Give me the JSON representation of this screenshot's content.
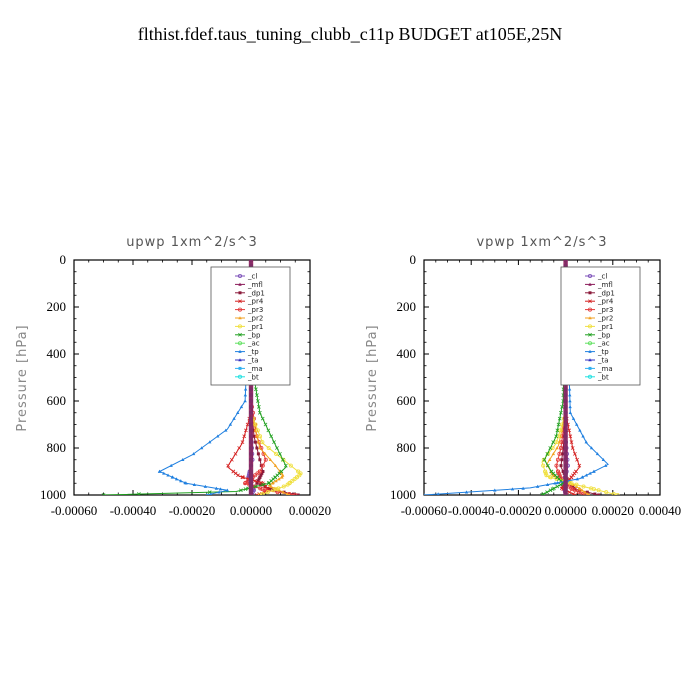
{
  "title": "flthist.fdef.taus_tuning_clubb_c11p  BUDGET at105E,25N",
  "colors": {
    "_cl": "#7b4fb8",
    "_mfl": "#8a1a5a",
    "_dp1": "#8b1a3a",
    "_pr4": "#d42020",
    "_pr3": "#e33a3a",
    "_pr2": "#f2a020",
    "_pr1": "#f0e040",
    "_bp": "#20a020",
    "_ac": "#60e060",
    "_tp": "#2080e0",
    "_ta": "#3030c0",
    "_ma": "#30b0f0",
    "_bt": "#20e0e0"
  },
  "chart_data": [
    {
      "type": "line",
      "title": "upwp   1xm^2/s^3",
      "xlabel": "",
      "ylabel": "Pressure [hPa]",
      "xlim": [
        -0.0006,
        0.0002
      ],
      "ylim": [
        1000,
        0
      ],
      "xticks": [
        "-0.00060",
        "-0.00040",
        "-0.00020",
        "0.00000",
        "0.00020"
      ],
      "yticks": [
        "0",
        "200",
        "400",
        "600",
        "800",
        "1000"
      ],
      "legend_position": "top-right",
      "series": [
        {
          "name": "_cl",
          "x": [
            0,
            0,
            0,
            5e-06,
            -1e-05,
            1e-05,
            0
          ],
          "y": [
            0,
            400,
            700,
            850,
            930,
            980,
            1000
          ]
        },
        {
          "name": "_mfl",
          "x": [
            0,
            0,
            0,
            0,
            0,
            0,
            0,
            0
          ],
          "y": [
            0,
            200,
            400,
            600,
            800,
            900,
            950,
            1000
          ]
        },
        {
          "name": "_dp1",
          "x": [
            0,
            0,
            1e-05,
            3e-05,
            4e-05,
            2e-05,
            8e-05,
            0.00016
          ],
          "y": [
            0,
            600,
            750,
            850,
            900,
            950,
            980,
            1000
          ]
        },
        {
          "name": "_pr4",
          "x": [
            0,
            0,
            -3e-05,
            -8e-05,
            -4e-05,
            4e-05,
            6e-05,
            2e-05
          ],
          "y": [
            0,
            650,
            780,
            880,
            920,
            950,
            980,
            1000
          ]
        },
        {
          "name": "_pr3",
          "x": [
            0,
            0,
            2e-05,
            5e-05,
            3e-05,
            -2e-05,
            5e-05,
            0.00015
          ],
          "y": [
            0,
            600,
            750,
            850,
            900,
            950,
            980,
            1000
          ]
        },
        {
          "name": "_pr2",
          "x": [
            0,
            0,
            3e-05,
            8e-05,
            0.00011,
            6e-05,
            0.00013
          ],
          "y": [
            0,
            650,
            800,
            870,
            920,
            960,
            1000
          ]
        },
        {
          "name": "_pr1",
          "x": [
            0,
            0,
            4e-05,
            0.00012,
            0.00017,
            0.00012,
            3e-05
          ],
          "y": [
            0,
            650,
            780,
            860,
            910,
            960,
            1000
          ]
        },
        {
          "name": "_bp",
          "x": [
            0,
            1e-05,
            3e-05,
            8e-05,
            0.00012,
            6e-05,
            -5e-05,
            -0.0005
          ],
          "y": [
            0,
            500,
            650,
            780,
            880,
            950,
            985,
            1000
          ]
        },
        {
          "name": "_ac",
          "x": [
            0,
            0,
            0,
            0,
            0,
            0
          ],
          "y": [
            0,
            400,
            700,
            900,
            960,
            1000
          ]
        },
        {
          "name": "_tp",
          "x": [
            0,
            -2e-05,
            -8e-05,
            -0.0002,
            -0.00031,
            -0.00022,
            -8e-05,
            -0.00015
          ],
          "y": [
            0,
            600,
            720,
            830,
            900,
            950,
            980,
            1000
          ]
        },
        {
          "name": "_ta",
          "x": [
            0,
            0,
            0,
            0,
            0
          ],
          "y": [
            0,
            500,
            800,
            950,
            1000
          ]
        },
        {
          "name": "_ma",
          "x": [
            0,
            0,
            0,
            0,
            0
          ],
          "y": [
            0,
            500,
            800,
            950,
            1000
          ]
        },
        {
          "name": "_bt",
          "x": [
            0,
            0,
            0,
            0,
            0
          ],
          "y": [
            0,
            500,
            800,
            950,
            1000
          ]
        }
      ]
    },
    {
      "type": "line",
      "title": "vpwp   1xm^2/s^3",
      "xlabel": "",
      "ylabel": "Pressure [hPa]",
      "xlim": [
        -0.0006,
        0.0004
      ],
      "ylim": [
        1000,
        0
      ],
      "xticks": [
        "-0.00060",
        "-0.00040",
        "-0.00020",
        "0.00000",
        "0.00020",
        "0.00040"
      ],
      "yticks": [
        "0",
        "200",
        "400",
        "600",
        "800",
        "1000"
      ],
      "legend_position": "top-right",
      "series": [
        {
          "name": "_cl",
          "x": [
            0,
            0,
            0,
            1e-05,
            -1e-05,
            0
          ],
          "y": [
            0,
            400,
            750,
            880,
            950,
            1000
          ]
        },
        {
          "name": "_mfl",
          "x": [
            0,
            0,
            0,
            0,
            0,
            0,
            0,
            0
          ],
          "y": [
            0,
            200,
            400,
            600,
            800,
            900,
            950,
            1000
          ]
        },
        {
          "name": "_dp1",
          "x": [
            0,
            0,
            -1e-05,
            -2e-05,
            1e-05,
            4e-05,
            0.00014
          ],
          "y": [
            0,
            650,
            800,
            880,
            940,
            975,
            1000
          ]
        },
        {
          "name": "_pr4",
          "x": [
            0,
            0,
            3e-05,
            6e-05,
            2e-05,
            -2e-05,
            4e-05
          ],
          "y": [
            0,
            650,
            800,
            880,
            930,
            970,
            1000
          ]
        },
        {
          "name": "_pr3",
          "x": [
            0,
            0,
            -2e-05,
            -4e-05,
            -2e-05,
            2e-05,
            8e-05
          ],
          "y": [
            0,
            650,
            800,
            880,
            930,
            970,
            1000
          ]
        },
        {
          "name": "_pr2",
          "x": [
            0,
            0,
            -3e-05,
            -8e-05,
            -5e-05,
            4e-05,
            0.0001
          ],
          "y": [
            0,
            650,
            790,
            870,
            920,
            960,
            1000
          ]
        },
        {
          "name": "_pr1",
          "x": [
            0,
            0,
            -4e-05,
            -0.0001,
            -8e-05,
            6e-05,
            0.00022
          ],
          "y": [
            0,
            650,
            780,
            860,
            920,
            960,
            1000
          ]
        },
        {
          "name": "_bp",
          "x": [
            0,
            -1e-05,
            -4e-05,
            -9e-05,
            -6e-05,
            -1e-05,
            -0.0001
          ],
          "y": [
            0,
            600,
            750,
            850,
            900,
            950,
            1000
          ]
        },
        {
          "name": "_ac",
          "x": [
            0,
            0,
            0,
            0,
            0,
            0
          ],
          "y": [
            0,
            400,
            700,
            900,
            960,
            1000
          ]
        },
        {
          "name": "_tp",
          "x": [
            0,
            2e-05,
            9e-05,
            0.00018,
            6e-05,
            -0.00015,
            -0.0006
          ],
          "y": [
            0,
            650,
            780,
            870,
            930,
            970,
            1000
          ]
        },
        {
          "name": "_ta",
          "x": [
            0,
            0,
            0,
            0,
            0
          ],
          "y": [
            0,
            500,
            800,
            950,
            1000
          ]
        },
        {
          "name": "_ma",
          "x": [
            0,
            0,
            0,
            0,
            0
          ],
          "y": [
            0,
            500,
            800,
            950,
            1000
          ]
        },
        {
          "name": "_bt",
          "x": [
            0,
            0,
            0,
            0,
            0
          ],
          "y": [
            0,
            500,
            800,
            950,
            1000
          ]
        }
      ]
    }
  ]
}
